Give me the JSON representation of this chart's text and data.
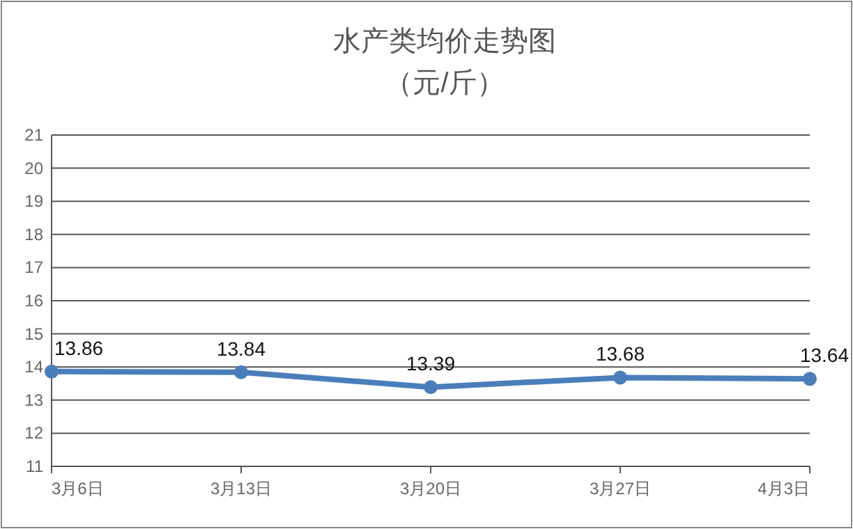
{
  "chart_data": {
    "type": "line",
    "title": "水产类均价走势图",
    "subtitle": "（元/斤）",
    "categories": [
      "3月6日",
      "3月13日",
      "3月20日",
      "3月27日",
      "4月3日"
    ],
    "series": [
      {
        "color": "#4a7ebb",
        "values": [
          13.86,
          13.84,
          13.39,
          13.68,
          13.64
        ]
      }
    ],
    "ylim": [
      11,
      21
    ],
    "yticks": [
      11,
      12,
      13,
      14,
      15,
      16,
      17,
      18,
      19,
      20,
      21
    ],
    "grid": "y",
    "marker": "circle",
    "line_style": "solid",
    "data_labels": true
  }
}
